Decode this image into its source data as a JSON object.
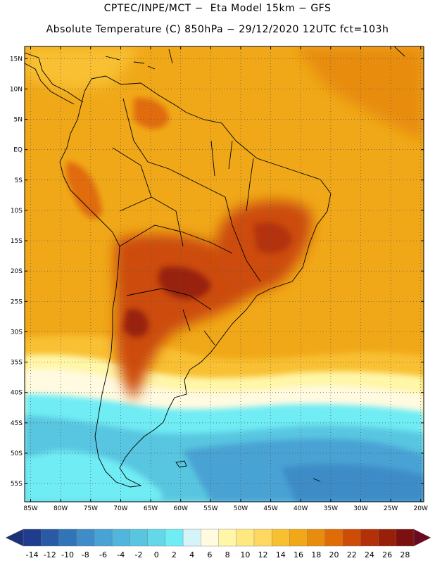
{
  "header": {
    "line1": "CPTEC/INPE/MCT −  Eta Model 15km − GFS",
    "line2": "Absolute Temperature (C) 850hPa − 29/12/2020 12UTC fct=103h"
  },
  "axes": {
    "lon_labels": [
      "85W",
      "80W",
      "75W",
      "70W",
      "65W",
      "60W",
      "55W",
      "50W",
      "45W",
      "40W",
      "35W",
      "30W",
      "25W",
      "20W"
    ],
    "lon_values": [
      -85,
      -80,
      -75,
      -70,
      -65,
      -60,
      -55,
      -50,
      -45,
      -40,
      -35,
      -30,
      -25,
      -20
    ],
    "lat_labels": [
      "15N",
      "10N",
      "5N",
      "EQ",
      "5S",
      "10S",
      "15S",
      "20S",
      "25S",
      "30S",
      "35S",
      "40S",
      "45S",
      "50S",
      "55S"
    ],
    "lat_values": [
      15,
      10,
      5,
      0,
      -5,
      -10,
      -15,
      -20,
      -25,
      -30,
      -35,
      -40,
      -45,
      -50,
      -55
    ],
    "lon_range": [
      -86,
      -19.5
    ],
    "lat_range": [
      17,
      -58
    ]
  },
  "colorbar": {
    "labels": [
      "-14",
      "-12",
      "-10",
      "-8",
      "-6",
      "-4",
      "-2",
      "0",
      "2",
      "4",
      "6",
      "8",
      "10",
      "12",
      "14",
      "16",
      "18",
      "20",
      "22",
      "24",
      "26",
      "28"
    ],
    "colors": [
      "#203c8c",
      "#2a5aa6",
      "#3274b8",
      "#3e8cc8",
      "#48a2d4",
      "#52b6dc",
      "#58c6e0",
      "#62d8e8",
      "#70ecf4",
      "#d4f4fa",
      "#fffae0",
      "#fff6a8",
      "#ffe880",
      "#ffd860",
      "#f8c030",
      "#f0a818",
      "#e88c10",
      "#e06c08",
      "#cc4c08",
      "#b43008",
      "#982008",
      "#7a1010"
    ]
  }
}
